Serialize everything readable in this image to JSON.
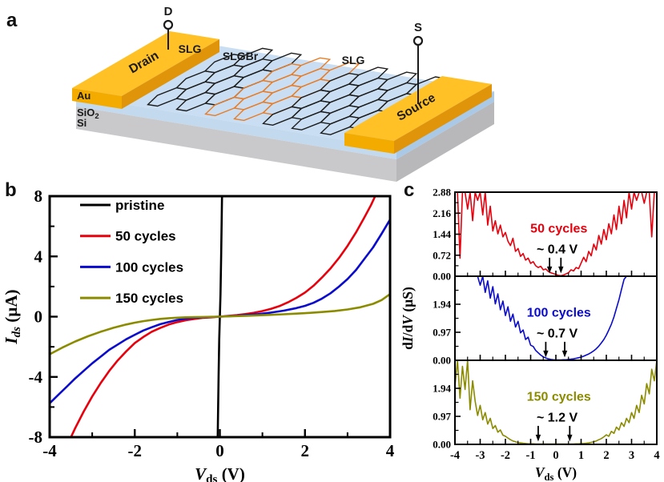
{
  "figure_labels": {
    "a": "a",
    "b": "b",
    "c": "c"
  },
  "panel_a": {
    "terminal_drain": "D",
    "terminal_source": "S",
    "electrode_drain": "Drain",
    "electrode_source": "Source",
    "layer_au": "Au",
    "layer_sio2_base": "SiO",
    "layer_sio2_sub": "2",
    "layer_si": "Si",
    "region_slg_left": "SLG",
    "region_slgbr": "SLGBr",
    "region_slg_right": "SLG",
    "colors": {
      "gold_top": "#ffc125",
      "gold_side": "#e0940a",
      "gold_end": "#f4ab00",
      "surface": "#c9def2",
      "sio2_front": "#c3d9ee",
      "sio2_side": "#aac9e6",
      "si_front": "#c9c9cb",
      "si_side": "#b8b8ba",
      "slg": "#1c1c1c",
      "slgbr": "#e87c26"
    }
  },
  "chart_data": [
    {
      "id": "iv-curves",
      "type": "line",
      "xlim": [
        -4,
        4
      ],
      "ylim": [
        -8,
        8
      ],
      "xticks": [
        -4,
        -2,
        0,
        2,
        4
      ],
      "xminor": [
        -3,
        -1,
        1,
        3
      ],
      "yticks": [
        -8,
        -4,
        0,
        4,
        8
      ],
      "yminor": [
        -6,
        -2,
        2,
        6
      ],
      "xlabel_parts": [
        {
          "t": "V",
          "i": 1
        },
        {
          "t": "ds",
          "sub": 1
        },
        {
          "t": " (V)"
        }
      ],
      "ylabel_parts": [
        {
          "t": "I",
          "i": 1
        },
        {
          "t": "ds",
          "sub": 1,
          "i": 1
        },
        {
          "t": " (µA)"
        }
      ],
      "series": [
        {
          "name": "pristine",
          "color": "#000000",
          "points": [
            [
              -0.05,
              -8
            ],
            [
              -0.03,
              -4
            ],
            [
              -0.015,
              -1.5
            ],
            [
              0,
              0
            ],
            [
              0.015,
              1.5
            ],
            [
              0.03,
              4
            ],
            [
              0.05,
              8
            ]
          ]
        },
        {
          "name": "50 cycles",
          "color": "#e8000d",
          "points": [
            [
              -3.5,
              -8
            ],
            [
              -3.4,
              -7.4
            ],
            [
              -3.2,
              -6.3
            ],
            [
              -3.0,
              -5.3
            ],
            [
              -2.8,
              -4.4
            ],
            [
              -2.6,
              -3.6
            ],
            [
              -2.4,
              -2.9
            ],
            [
              -2.2,
              -2.3
            ],
            [
              -2.0,
              -1.75
            ],
            [
              -1.8,
              -1.35
            ],
            [
              -1.6,
              -1.0
            ],
            [
              -1.4,
              -0.75
            ],
            [
              -1.2,
              -0.52
            ],
            [
              -1.0,
              -0.36
            ],
            [
              -0.8,
              -0.24
            ],
            [
              -0.6,
              -0.15
            ],
            [
              -0.4,
              -0.08
            ],
            [
              -0.2,
              -0.04
            ],
            [
              0,
              0
            ],
            [
              0.2,
              0.05
            ],
            [
              0.4,
              0.1
            ],
            [
              0.6,
              0.17
            ],
            [
              0.8,
              0.26
            ],
            [
              1.0,
              0.37
            ],
            [
              1.2,
              0.52
            ],
            [
              1.4,
              0.7
            ],
            [
              1.6,
              0.95
            ],
            [
              1.8,
              1.25
            ],
            [
              2.0,
              1.6
            ],
            [
              2.2,
              2.05
            ],
            [
              2.4,
              2.6
            ],
            [
              2.6,
              3.2
            ],
            [
              2.8,
              3.9
            ],
            [
              3.0,
              4.7
            ],
            [
              3.2,
              5.6
            ],
            [
              3.4,
              6.6
            ],
            [
              3.55,
              7.4
            ],
            [
              3.65,
              8.0
            ]
          ]
        },
        {
          "name": "100 cycles",
          "color": "#0a0acd",
          "points": [
            [
              -4,
              -5.75
            ],
            [
              -3.8,
              -5.2
            ],
            [
              -3.6,
              -4.65
            ],
            [
              -3.4,
              -4.1
            ],
            [
              -3.2,
              -3.6
            ],
            [
              -3.0,
              -3.1
            ],
            [
              -2.8,
              -2.65
            ],
            [
              -2.6,
              -2.2
            ],
            [
              -2.4,
              -1.85
            ],
            [
              -2.2,
              -1.5
            ],
            [
              -2.0,
              -1.2
            ],
            [
              -1.8,
              -0.92
            ],
            [
              -1.6,
              -0.7
            ],
            [
              -1.4,
              -0.5
            ],
            [
              -1.2,
              -0.35
            ],
            [
              -1.0,
              -0.22
            ],
            [
              -0.8,
              -0.13
            ],
            [
              -0.6,
              -0.07
            ],
            [
              -0.4,
              -0.04
            ],
            [
              -0.2,
              -0.02
            ],
            [
              0,
              0
            ],
            [
              0.3,
              0.04
            ],
            [
              0.6,
              0.1
            ],
            [
              0.9,
              0.17
            ],
            [
              1.2,
              0.27
            ],
            [
              1.5,
              0.4
            ],
            [
              1.8,
              0.57
            ],
            [
              2.0,
              0.72
            ],
            [
              2.2,
              0.92
            ],
            [
              2.4,
              1.2
            ],
            [
              2.6,
              1.55
            ],
            [
              2.8,
              2.0
            ],
            [
              3.0,
              2.5
            ],
            [
              3.2,
              3.1
            ],
            [
              3.4,
              3.85
            ],
            [
              3.6,
              4.6
            ],
            [
              3.8,
              5.5
            ],
            [
              4.0,
              6.45
            ]
          ]
        },
        {
          "name": "150 cycles",
          "color": "#8b8b00",
          "points": [
            [
              -4,
              -2.5
            ],
            [
              -3.7,
              -2.05
            ],
            [
              -3.4,
              -1.65
            ],
            [
              -3.1,
              -1.3
            ],
            [
              -2.8,
              -1.0
            ],
            [
              -2.5,
              -0.74
            ],
            [
              -2.2,
              -0.52
            ],
            [
              -2.0,
              -0.4
            ],
            [
              -1.8,
              -0.3
            ],
            [
              -1.6,
              -0.22
            ],
            [
              -1.4,
              -0.15
            ],
            [
              -1.2,
              -0.1
            ],
            [
              -1.0,
              -0.07
            ],
            [
              -0.8,
              -0.04
            ],
            [
              -0.6,
              -0.03
            ],
            [
              -0.4,
              -0.02
            ],
            [
              -0.2,
              -0.01
            ],
            [
              0,
              0
            ],
            [
              0.3,
              0.03
            ],
            [
              0.6,
              0.06
            ],
            [
              0.9,
              0.09
            ],
            [
              1.2,
              0.12
            ],
            [
              1.5,
              0.16
            ],
            [
              1.8,
              0.2
            ],
            [
              2.1,
              0.25
            ],
            [
              2.4,
              0.31
            ],
            [
              2.7,
              0.38
            ],
            [
              3.0,
              0.48
            ],
            [
              3.3,
              0.62
            ],
            [
              3.6,
              0.85
            ],
            [
              3.8,
              1.1
            ],
            [
              4.0,
              1.5
            ]
          ]
        }
      ]
    },
    {
      "id": "didv-stack",
      "type": "line-stack",
      "xlim": [
        -4,
        4
      ],
      "xticks": [
        -4,
        -3,
        -2,
        -1,
        0,
        1,
        2,
        3,
        4
      ],
      "xminor": [
        -3.5,
        -2.5,
        -1.5,
        -0.5,
        0.5,
        1.5,
        2.5,
        3.5
      ],
      "xlabel_parts": [
        {
          "t": "V",
          "i": 1
        },
        {
          "t": "ds",
          "sub": 1
        },
        {
          "t": " (V)"
        }
      ],
      "ylabel_parts": [
        {
          "t": "d"
        },
        {
          "t": "I",
          "i": 1
        },
        {
          "t": "/d"
        },
        {
          "t": "V",
          "i": 1
        },
        {
          "t": " (µS)"
        }
      ],
      "panels": [
        {
          "name": "50 cycles",
          "color": "#e8000d",
          "gap_label": "~ 0.4 V",
          "arrows_x": [
            -0.25,
            0.2
          ],
          "ylim": [
            0,
            2.88
          ],
          "yticks": [
            0,
            0.72,
            1.44,
            2.16,
            2.88
          ],
          "yminor": [
            0.36,
            1.08,
            1.8,
            2.52
          ],
          "x_start": -4,
          "x_step": 0.1,
          "values": [
            2.88,
            2.88,
            0.62,
            2.88,
            2.88,
            2.3,
            2.88,
            1.9,
            2.88,
            2.6,
            2.88,
            2.1,
            2.88,
            1.75,
            2.4,
            1.55,
            1.9,
            1.45,
            1.75,
            1.35,
            1.5,
            1.2,
            1.05,
            1.3,
            0.85,
            0.95,
            0.68,
            0.78,
            0.55,
            0.62,
            0.44,
            0.5,
            0.36,
            0.3,
            0.34,
            0.22,
            0.25,
            0.16,
            0.12,
            0.09,
            0.06,
            0.03,
            0.02,
            0.04,
            0.08,
            0.12,
            0.22,
            0.18,
            0.3,
            0.26,
            0.45,
            0.65,
            0.5,
            0.85,
            0.7,
            1.1,
            0.9,
            1.4,
            1.1,
            1.6,
            1.25,
            1.8,
            1.45,
            2.1,
            1.6,
            2.4,
            1.8,
            2.6,
            2.0,
            2.88,
            2.3,
            2.88,
            2.6,
            2.88,
            2.88,
            2.5,
            2.88,
            2.88,
            1.35,
            2.88,
            2.88
          ]
        },
        {
          "name": "100 cycles",
          "color": "#0a0acd",
          "gap_label": "~ 0.7 V",
          "arrows_x": [
            -0.4,
            0.35
          ],
          "ylim": [
            0,
            2.91
          ],
          "yticks": [
            0,
            0.97,
            1.94
          ],
          "yminor": [
            0.485,
            1.455,
            2.425
          ],
          "x_start": -4,
          "x_step": 0.1,
          "values": [
            2.91,
            2.91,
            2.91,
            2.91,
            2.91,
            2.91,
            2.91,
            2.91,
            2.91,
            2.91,
            2.6,
            2.91,
            2.35,
            2.75,
            2.15,
            2.55,
            1.95,
            2.3,
            1.75,
            2.05,
            1.55,
            1.85,
            1.35,
            1.6,
            1.15,
            1.35,
            0.95,
            1.05,
            0.72,
            0.8,
            0.52,
            0.48,
            0.34,
            0.26,
            0.18,
            0.12,
            0.08,
            0.05,
            0.03,
            0.02,
            0.01,
            0.01,
            0.01,
            0.02,
            0.02,
            0.03,
            0.04,
            0.05,
            0.07,
            0.09,
            0.11,
            0.14,
            0.18,
            0.22,
            0.27,
            0.33,
            0.4,
            0.49,
            0.6,
            0.72,
            0.87,
            1.05,
            1.25,
            1.5,
            1.8,
            2.1,
            2.45,
            2.8,
            2.91,
            2.91,
            2.91,
            2.91,
            2.91,
            2.91,
            2.91,
            2.91,
            2.91,
            2.91,
            2.91,
            2.91,
            2.91
          ]
        },
        {
          "name": "150 cycles",
          "color": "#8b8b00",
          "gap_label": "~ 1.2 V",
          "arrows_x": [
            -0.7,
            0.55
          ],
          "ylim": [
            0,
            2.91
          ],
          "yticks": [
            0,
            0.97,
            1.94
          ],
          "yminor": [
            0.485,
            1.455,
            2.425
          ],
          "x_start": -4,
          "x_step": 0.1,
          "values": [
            2.0,
            2.91,
            1.6,
            2.7,
            1.9,
            2.91,
            1.2,
            2.2,
            1.5,
            1.0,
            1.35,
            0.85,
            1.1,
            0.7,
            0.9,
            0.55,
            0.65,
            0.42,
            0.5,
            0.32,
            0.28,
            0.22,
            0.16,
            0.12,
            0.09,
            0.06,
            0.05,
            0.04,
            0.03,
            0.02,
            0.02,
            0.02,
            0.01,
            0.01,
            0.01,
            0.01,
            0.01,
            0.01,
            0.01,
            0.01,
            0.01,
            0.01,
            0.01,
            0.01,
            0.01,
            0.01,
            0.01,
            0.01,
            0.02,
            0.02,
            0.03,
            0.03,
            0.04,
            0.05,
            0.07,
            0.09,
            0.12,
            0.16,
            0.2,
            0.26,
            0.33,
            0.28,
            0.45,
            0.38,
            0.6,
            0.5,
            0.75,
            0.62,
            0.9,
            0.75,
            1.1,
            0.9,
            1.35,
            1.1,
            1.7,
            1.4,
            2.1,
            1.75,
            2.6,
            2.2,
            2.91
          ]
        }
      ]
    }
  ]
}
